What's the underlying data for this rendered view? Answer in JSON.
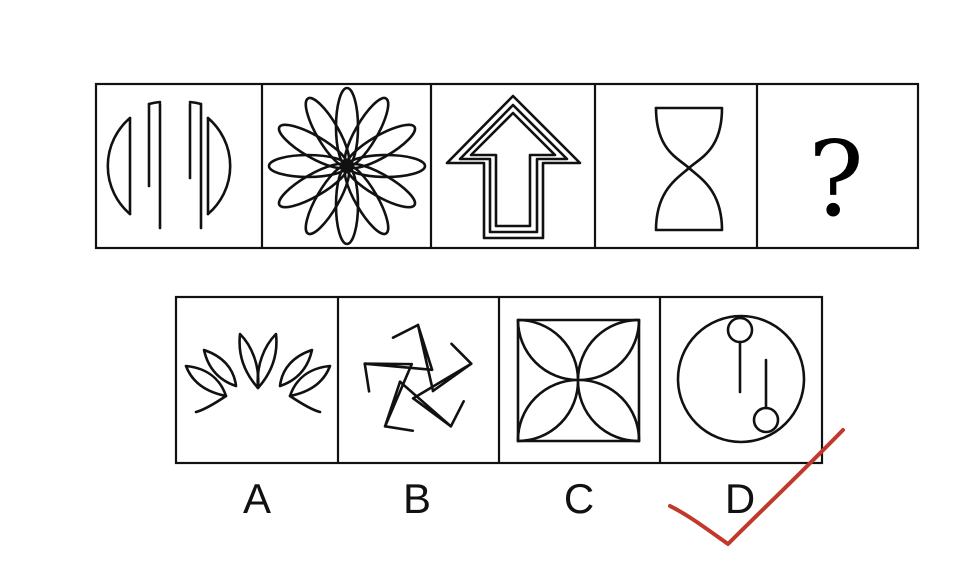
{
  "question_row": {
    "panels": [
      {
        "figure": "circle-with-vertical-slots-icon"
      },
      {
        "figure": "flower-of-ellipses-icon"
      },
      {
        "figure": "double-outline-arrow-up-icon"
      },
      {
        "figure": "hourglass-icon"
      },
      {
        "figure": "question-mark",
        "text": "?"
      }
    ]
  },
  "options": [
    {
      "label": "A",
      "figure": "lotus-petals-icon"
    },
    {
      "label": "B",
      "figure": "pinwheel-star-icon"
    },
    {
      "label": "C",
      "figure": "square-with-four-petals-icon"
    },
    {
      "label": "D",
      "figure": "circle-with-two-pins-icon"
    }
  ],
  "answer_mark": {
    "label": "D",
    "icon": "red-checkmark-icon",
    "color": "#c0392b"
  }
}
